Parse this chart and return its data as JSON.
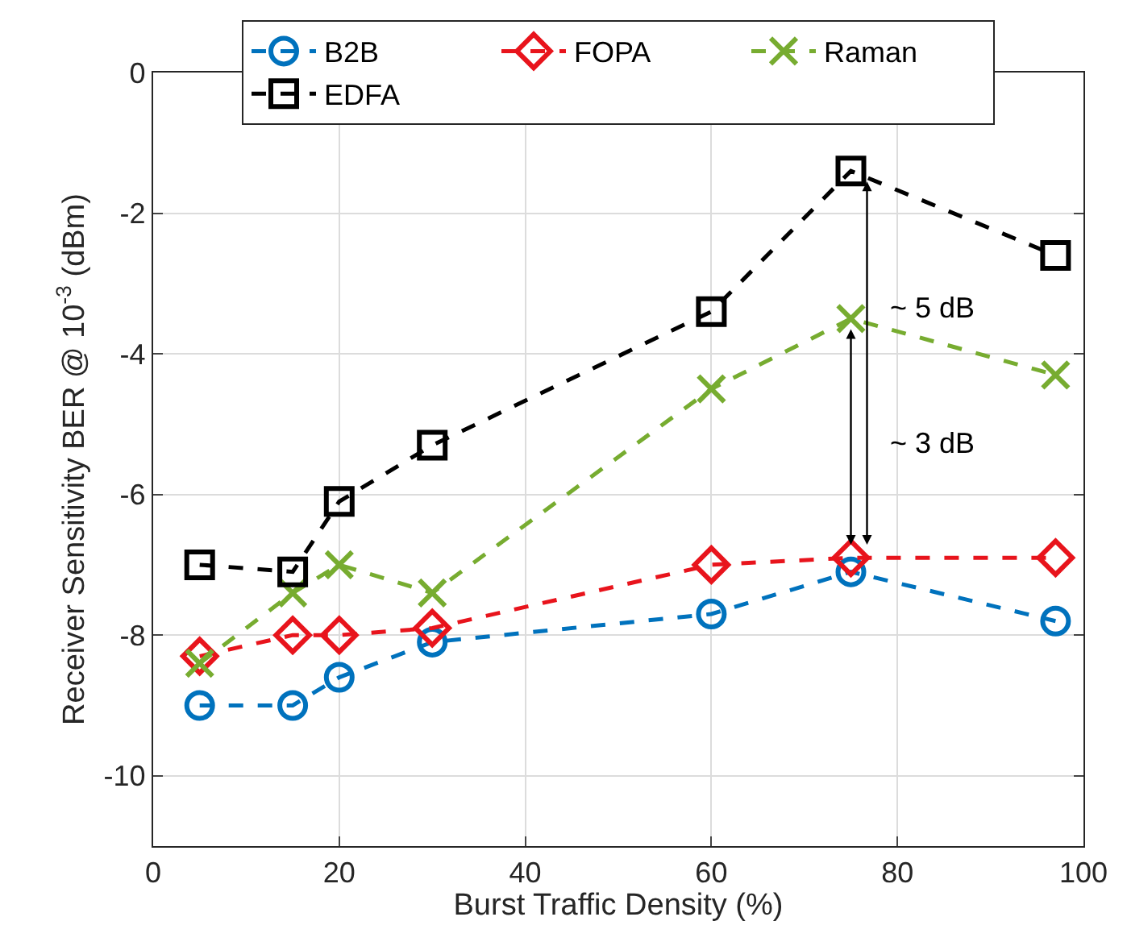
{
  "chart_data": {
    "type": "line",
    "xlabel": "Burst Traffic Density (%)",
    "ylabel": "Receiver Sensitivity BER @ 10$^{-3}$ (dBm)",
    "x": [
      5,
      15,
      20,
      30,
      60,
      75,
      97
    ],
    "series": [
      {
        "name": "B2B",
        "color": "#0072bd",
        "marker": "circle",
        "values": [
          -9.0,
          -9.0,
          -8.6,
          -8.1,
          -7.7,
          -7.1,
          -7.8
        ]
      },
      {
        "name": "FOPA",
        "color": "#e8141c",
        "marker": "diamond",
        "values": [
          -8.3,
          -8.0,
          -8.0,
          -7.9,
          -7.0,
          -6.9,
          -6.9
        ]
      },
      {
        "name": "Raman",
        "color": "#77ac30",
        "marker": "cross",
        "values": [
          -8.4,
          -7.4,
          -7.0,
          -7.4,
          -4.5,
          -3.5,
          -4.3
        ]
      },
      {
        "name": "EDFA",
        "color": "#000000",
        "marker": "square",
        "values": [
          -7.0,
          -7.1,
          -6.1,
          -5.3,
          -3.4,
          -1.4,
          -2.6
        ]
      }
    ],
    "line_style": "dashed",
    "xlim": [
      0,
      100
    ],
    "xticks": [
      0,
      20,
      40,
      60,
      80,
      100
    ],
    "ylim": [
      -11,
      0
    ],
    "yticks": [
      -10,
      -8,
      -6,
      -4,
      -2,
      0
    ],
    "grid": true,
    "legend": "top",
    "annotations": [
      "~ 5 dB",
      "~ 3 dB"
    ]
  }
}
